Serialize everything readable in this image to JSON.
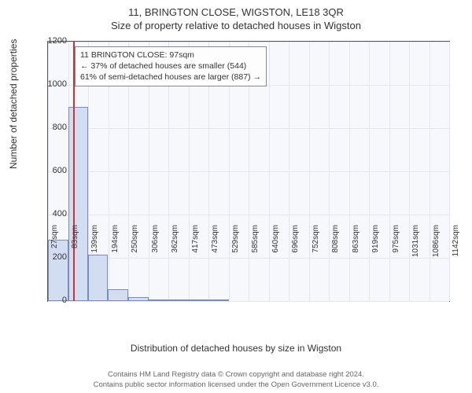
{
  "title_line1": "11, BRINGTON CLOSE, WIGSTON, LE18 3QR",
  "title_line2": "Size of property relative to detached houses in Wigston",
  "ylabel": "Number of detached properties",
  "xlabel": "Distribution of detached houses by size in Wigston",
  "footer_line1": "Contains HM Land Registry data © Crown copyright and database right 2024.",
  "footer_line2": "Contains public sector information licensed under the Open Government Licence v3.0.",
  "annotation": {
    "line1": "11 BRINGTON CLOSE: 97sqm",
    "line2": "← 37% of detached houses are smaller (544)",
    "line3": "61% of semi-detached houses are larger (887) →"
  },
  "chart": {
    "type": "histogram",
    "background_color": "#f6f8fc",
    "grid_color": "#e2e6ef",
    "axis_color": "#555555",
    "bar_fill": "#d3ddf2",
    "bar_border": "#7a8db8",
    "marker_color": "#cc3333",
    "annotation_bg": "#fdfdfd",
    "annotation_border": "#888888",
    "ylim": [
      0,
      1200
    ],
    "yticks": [
      0,
      200,
      400,
      600,
      800,
      1000,
      1200
    ],
    "xticks_labels": [
      "27sqm",
      "83sqm",
      "139sqm",
      "194sqm",
      "250sqm",
      "306sqm",
      "362sqm",
      "417sqm",
      "473sqm",
      "529sqm",
      "585sqm",
      "640sqm",
      "696sqm",
      "752sqm",
      "808sqm",
      "863sqm",
      "919sqm",
      "975sqm",
      "1031sqm",
      "1086sqm",
      "1142sqm"
    ],
    "xmin": 27,
    "xmax": 1142,
    "marker_x": 97,
    "bars": [
      {
        "x0": 27,
        "x1": 83,
        "value": 285
      },
      {
        "x0": 83,
        "x1": 139,
        "value": 900
      },
      {
        "x0": 139,
        "x1": 194,
        "value": 215
      },
      {
        "x0": 194,
        "x1": 250,
        "value": 55
      },
      {
        "x0": 250,
        "x1": 306,
        "value": 20
      },
      {
        "x0": 306,
        "x1": 362,
        "value": 8
      },
      {
        "x0": 362,
        "x1": 417,
        "value": 6
      },
      {
        "x0": 417,
        "x1": 473,
        "value": 6
      },
      {
        "x0": 473,
        "x1": 529,
        "value": 4
      }
    ],
    "label_fontsize": 12,
    "tick_fontsize": 11,
    "title_fontsize": 13,
    "annotation_fontsize": 10.5
  }
}
